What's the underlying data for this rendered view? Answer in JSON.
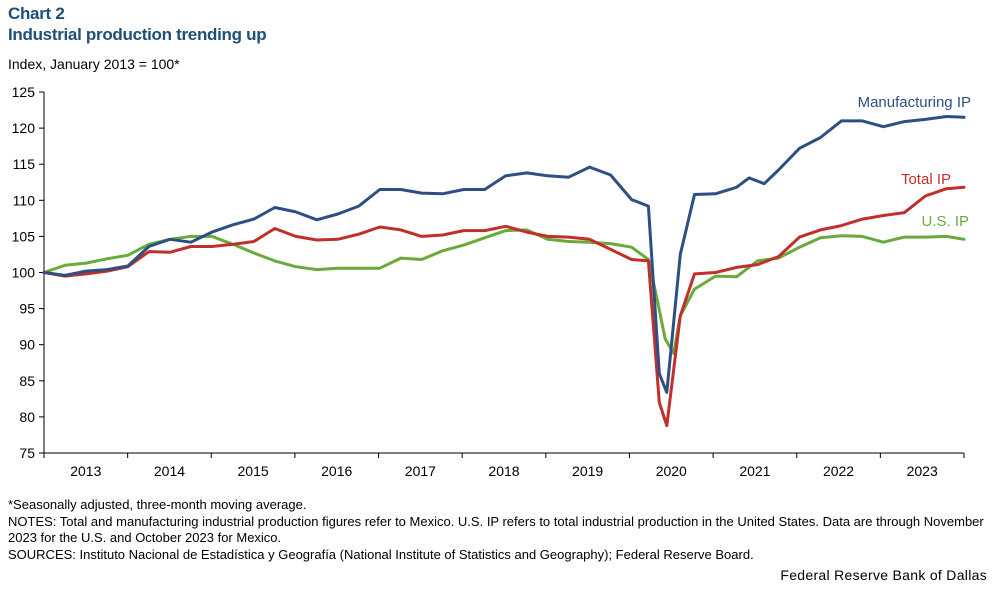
{
  "header": {
    "chart_number": "Chart 2",
    "title": "Industrial production trending up",
    "y_axis_label": "Index, January 2013 = 100*"
  },
  "colors": {
    "title": "#1f4e79",
    "manufacturing": "#2e4f82",
    "total": "#c0302b",
    "us": "#6aaa3c",
    "axis": "#000000"
  },
  "chart_data": {
    "type": "line",
    "title": "Industrial production trending up",
    "xlabel": "",
    "ylabel": "Index, January 2013 = 100*",
    "xlim": [
      2013.0,
      2023.96
    ],
    "ylim": [
      75,
      125
    ],
    "y_ticks": [
      75,
      80,
      85,
      90,
      95,
      100,
      105,
      110,
      115,
      120,
      125
    ],
    "x_tick_labels": [
      "2013",
      "2014",
      "2015",
      "2016",
      "2017",
      "2018",
      "2019",
      "2020",
      "2021",
      "2022",
      "2023"
    ],
    "grid": false,
    "legend": "inline labels at series ends",
    "series": [
      {
        "name": "Manufacturing IP",
        "color": "#2e4f82",
        "points": [
          [
            2013.0,
            100.0
          ],
          [
            2013.25,
            99.6
          ],
          [
            2013.5,
            100.2
          ],
          [
            2013.75,
            100.4
          ],
          [
            2014.0,
            100.9
          ],
          [
            2014.25,
            103.6
          ],
          [
            2014.5,
            104.6
          ],
          [
            2014.75,
            104.2
          ],
          [
            2015.0,
            105.6
          ],
          [
            2015.25,
            106.6
          ],
          [
            2015.5,
            107.4
          ],
          [
            2015.75,
            109.0
          ],
          [
            2016.0,
            108.4
          ],
          [
            2016.25,
            107.3
          ],
          [
            2016.5,
            108.1
          ],
          [
            2016.75,
            109.2
          ],
          [
            2017.0,
            111.5
          ],
          [
            2017.25,
            111.5
          ],
          [
            2017.5,
            111.0
          ],
          [
            2017.75,
            110.9
          ],
          [
            2018.0,
            111.5
          ],
          [
            2018.25,
            111.5
          ],
          [
            2018.5,
            113.4
          ],
          [
            2018.75,
            113.8
          ],
          [
            2019.0,
            113.4
          ],
          [
            2019.25,
            113.2
          ],
          [
            2019.5,
            114.6
          ],
          [
            2019.75,
            113.5
          ],
          [
            2020.0,
            110.1
          ],
          [
            2020.2,
            109.2
          ],
          [
            2020.33,
            86.0
          ],
          [
            2020.42,
            83.4
          ],
          [
            2020.58,
            102.5
          ],
          [
            2020.75,
            110.8
          ],
          [
            2021.0,
            110.9
          ],
          [
            2021.25,
            111.8
          ],
          [
            2021.4,
            113.1
          ],
          [
            2021.58,
            112.3
          ],
          [
            2021.75,
            114.2
          ],
          [
            2022.0,
            117.2
          ],
          [
            2022.25,
            118.7
          ],
          [
            2022.5,
            121.0
          ],
          [
            2022.75,
            121.0
          ],
          [
            2023.0,
            120.2
          ],
          [
            2023.25,
            120.9
          ],
          [
            2023.5,
            121.2
          ],
          [
            2023.75,
            121.6
          ],
          [
            2023.96,
            121.5
          ]
        ]
      },
      {
        "name": "Total IP",
        "color": "#c0302b",
        "points": [
          [
            2013.0,
            100.0
          ],
          [
            2013.25,
            99.5
          ],
          [
            2013.5,
            99.8
          ],
          [
            2013.75,
            100.2
          ],
          [
            2014.0,
            100.8
          ],
          [
            2014.25,
            102.9
          ],
          [
            2014.5,
            102.8
          ],
          [
            2014.75,
            103.6
          ],
          [
            2015.0,
            103.6
          ],
          [
            2015.25,
            103.9
          ],
          [
            2015.5,
            104.3
          ],
          [
            2015.75,
            106.1
          ],
          [
            2016.0,
            105.0
          ],
          [
            2016.25,
            104.5
          ],
          [
            2016.5,
            104.6
          ],
          [
            2016.75,
            105.3
          ],
          [
            2017.0,
            106.3
          ],
          [
            2017.25,
            105.9
          ],
          [
            2017.5,
            105.0
          ],
          [
            2017.75,
            105.2
          ],
          [
            2018.0,
            105.8
          ],
          [
            2018.25,
            105.8
          ],
          [
            2018.5,
            106.4
          ],
          [
            2018.75,
            105.6
          ],
          [
            2019.0,
            105.0
          ],
          [
            2019.25,
            104.9
          ],
          [
            2019.5,
            104.6
          ],
          [
            2019.75,
            103.2
          ],
          [
            2020.0,
            101.8
          ],
          [
            2020.2,
            101.6
          ],
          [
            2020.33,
            82.0
          ],
          [
            2020.42,
            78.8
          ],
          [
            2020.58,
            94.0
          ],
          [
            2020.75,
            99.8
          ],
          [
            2021.0,
            100.0
          ],
          [
            2021.25,
            100.7
          ],
          [
            2021.5,
            101.1
          ],
          [
            2021.75,
            102.2
          ],
          [
            2022.0,
            104.9
          ],
          [
            2022.25,
            105.9
          ],
          [
            2022.5,
            106.5
          ],
          [
            2022.75,
            107.4
          ],
          [
            2023.0,
            107.9
          ],
          [
            2023.25,
            108.3
          ],
          [
            2023.5,
            110.6
          ],
          [
            2023.75,
            111.6
          ],
          [
            2023.96,
            111.8
          ]
        ]
      },
      {
        "name": "U.S. IP",
        "color": "#6aaa3c",
        "points": [
          [
            2013.0,
            100.0
          ],
          [
            2013.25,
            101.0
          ],
          [
            2013.5,
            101.3
          ],
          [
            2013.75,
            101.9
          ],
          [
            2014.0,
            102.4
          ],
          [
            2014.25,
            103.9
          ],
          [
            2014.5,
            104.6
          ],
          [
            2014.75,
            105.0
          ],
          [
            2015.0,
            105.0
          ],
          [
            2015.25,
            103.9
          ],
          [
            2015.5,
            102.7
          ],
          [
            2015.75,
            101.6
          ],
          [
            2016.0,
            100.8
          ],
          [
            2016.25,
            100.4
          ],
          [
            2016.5,
            100.6
          ],
          [
            2016.75,
            100.6
          ],
          [
            2017.0,
            100.6
          ],
          [
            2017.25,
            102.0
          ],
          [
            2017.5,
            101.8
          ],
          [
            2017.75,
            103.0
          ],
          [
            2018.0,
            103.8
          ],
          [
            2018.25,
            104.8
          ],
          [
            2018.5,
            105.8
          ],
          [
            2018.75,
            105.9
          ],
          [
            2019.0,
            104.6
          ],
          [
            2019.25,
            104.3
          ],
          [
            2019.5,
            104.2
          ],
          [
            2019.75,
            104.0
          ],
          [
            2020.0,
            103.5
          ],
          [
            2020.2,
            101.8
          ],
          [
            2020.3,
            96.5
          ],
          [
            2020.4,
            90.8
          ],
          [
            2020.5,
            88.8
          ],
          [
            2020.58,
            94.0
          ],
          [
            2020.75,
            97.7
          ],
          [
            2021.0,
            99.5
          ],
          [
            2021.25,
            99.4
          ],
          [
            2021.5,
            101.6
          ],
          [
            2021.75,
            102.0
          ],
          [
            2022.0,
            103.5
          ],
          [
            2022.25,
            104.8
          ],
          [
            2022.5,
            105.1
          ],
          [
            2022.75,
            105.0
          ],
          [
            2023.0,
            104.2
          ],
          [
            2023.25,
            104.9
          ],
          [
            2023.5,
            104.9
          ],
          [
            2023.75,
            105.0
          ],
          [
            2023.96,
            104.6
          ]
        ]
      }
    ]
  },
  "notes": {
    "asterisk": "*Seasonally adjusted, three-month moving average.",
    "notes": "NOTES: Total and manufacturing industrial production figures refer to Mexico. U.S. IP refers to total industrial production in the United States. Data are through November 2023 for the U.S. and October 2023 for Mexico.",
    "sources": "SOURCES: Instituto Nacional de Estadística y Geografía (National Institute of Statistics and Geography); Federal Reserve Board.",
    "credit": "Federal Reserve Bank of Dallas"
  }
}
